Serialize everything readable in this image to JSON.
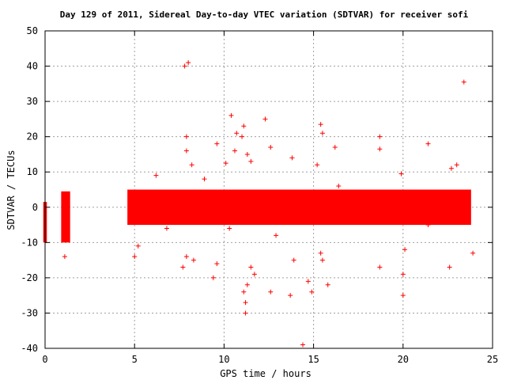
{
  "chart_data": {
    "type": "scatter",
    "title": "Day 129 of 2011, Sidereal Day-to-day VTEC variation (SDTVAR) for receiver sofi",
    "xlabel": "GPS time / hours",
    "ylabel": "SDTVAR / TECUs",
    "xlim": [
      0,
      25
    ],
    "ylim": [
      -40,
      50
    ],
    "xticks": [
      "0",
      "5",
      "10",
      "15",
      "20",
      "25"
    ],
    "yticks": [
      "-40",
      "-30",
      "-20",
      "-10",
      "0",
      "10",
      "20",
      "30",
      "40",
      "50"
    ],
    "grid": true,
    "legend": "none",
    "marker": "+",
    "color": "#ff0000",
    "bands": [
      {
        "x": [
          -0.1,
          0.1
        ],
        "y": [
          -10,
          1.5
        ]
      },
      {
        "x": [
          0.9,
          1.4
        ],
        "y": [
          -10,
          4.5
        ]
      },
      {
        "x": [
          4.6,
          23.8
        ],
        "y": [
          -5,
          5
        ]
      }
    ],
    "points": [
      {
        "x": 7.8,
        "y": 40
      },
      {
        "x": 8.0,
        "y": 41
      },
      {
        "x": 23.4,
        "y": 35.5
      },
      {
        "x": 10.4,
        "y": 26
      },
      {
        "x": 12.3,
        "y": 25
      },
      {
        "x": 11.1,
        "y": 23
      },
      {
        "x": 15.4,
        "y": 23.5
      },
      {
        "x": 15.5,
        "y": 21
      },
      {
        "x": 10.7,
        "y": 21
      },
      {
        "x": 11.0,
        "y": 20
      },
      {
        "x": 7.9,
        "y": 20
      },
      {
        "x": 18.7,
        "y": 20
      },
      {
        "x": 9.6,
        "y": 18
      },
      {
        "x": 21.4,
        "y": 18
      },
      {
        "x": 16.2,
        "y": 17
      },
      {
        "x": 12.6,
        "y": 17
      },
      {
        "x": 10.6,
        "y": 16
      },
      {
        "x": 7.9,
        "y": 16
      },
      {
        "x": 18.7,
        "y": 16.5
      },
      {
        "x": 11.3,
        "y": 15
      },
      {
        "x": 13.8,
        "y": 14
      },
      {
        "x": 11.5,
        "y": 13
      },
      {
        "x": 10.1,
        "y": 12.5
      },
      {
        "x": 8.2,
        "y": 12
      },
      {
        "x": 15.2,
        "y": 12
      },
      {
        "x": 19.9,
        "y": 9.5
      },
      {
        "x": 6.2,
        "y": 9
      },
      {
        "x": 8.9,
        "y": 8
      },
      {
        "x": 16.4,
        "y": 6
      },
      {
        "x": 5.3,
        "y": 4
      },
      {
        "x": 23.0,
        "y": 12
      },
      {
        "x": 22.7,
        "y": 11
      },
      {
        "x": 6.8,
        "y": -6
      },
      {
        "x": 10.3,
        "y": -6
      },
      {
        "x": 12.9,
        "y": -8
      },
      {
        "x": 5.2,
        "y": -11
      },
      {
        "x": 5.0,
        "y": -14
      },
      {
        "x": 7.9,
        "y": -14
      },
      {
        "x": 8.3,
        "y": -15
      },
      {
        "x": 7.7,
        "y": -17
      },
      {
        "x": 1.1,
        "y": -14
      },
      {
        "x": 9.6,
        "y": -16
      },
      {
        "x": 11.5,
        "y": -17
      },
      {
        "x": 11.7,
        "y": -19
      },
      {
        "x": 9.4,
        "y": -20
      },
      {
        "x": 14.7,
        "y": -21
      },
      {
        "x": 15.8,
        "y": -22
      },
      {
        "x": 11.3,
        "y": -22
      },
      {
        "x": 11.1,
        "y": -24
      },
      {
        "x": 12.6,
        "y": -24
      },
      {
        "x": 13.7,
        "y": -25
      },
      {
        "x": 14.9,
        "y": -24
      },
      {
        "x": 20.0,
        "y": -25
      },
      {
        "x": 11.2,
        "y": -27
      },
      {
        "x": 11.2,
        "y": -30
      },
      {
        "x": 14.4,
        "y": -39
      },
      {
        "x": 22.6,
        "y": -17
      },
      {
        "x": 23.9,
        "y": -13
      },
      {
        "x": 20.0,
        "y": -19
      },
      {
        "x": 18.7,
        "y": -17
      },
      {
        "x": 13.9,
        "y": -15
      },
      {
        "x": 15.4,
        "y": -13
      },
      {
        "x": 15.5,
        "y": -15
      },
      {
        "x": 20.1,
        "y": -12
      },
      {
        "x": 21.4,
        "y": -5
      }
    ]
  }
}
